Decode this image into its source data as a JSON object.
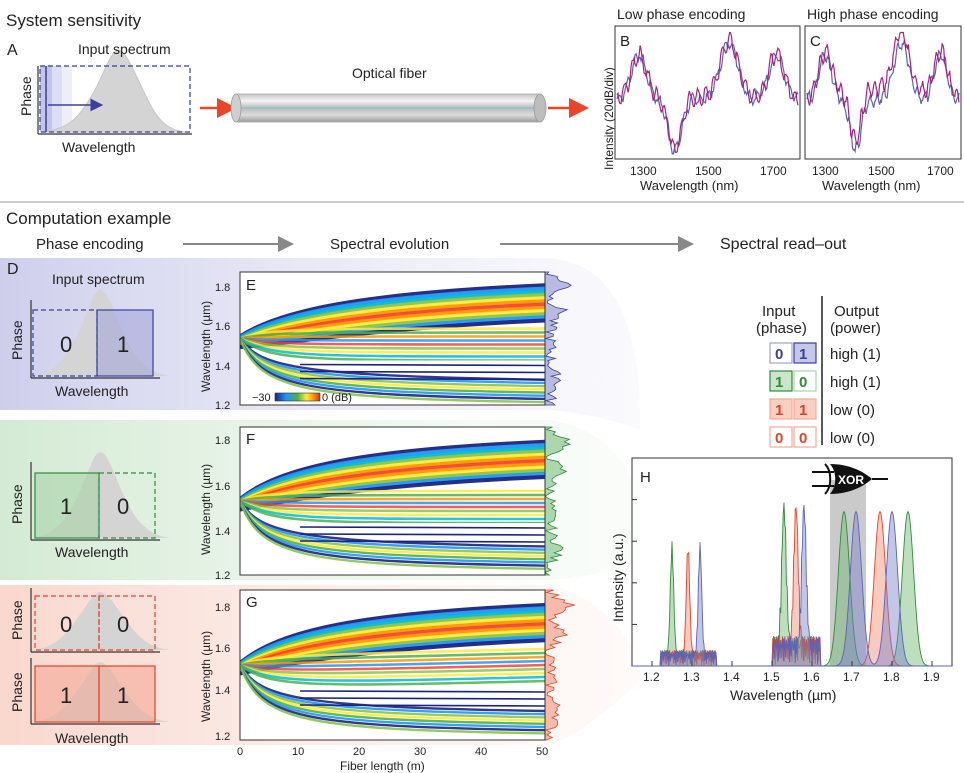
{
  "sensitivity": {
    "title": "System sensitivity",
    "panel_a": {
      "letter": "A",
      "input_label": "Input spectrum",
      "y_label": "Phase",
      "x_label": "Wavelength",
      "fiber_label": "Optical fiber"
    },
    "panel_b": {
      "letter": "B",
      "title": "Low phase encoding"
    },
    "panel_c": {
      "letter": "C",
      "title": "High phase encoding"
    },
    "bc_y_label": "Intensity (20dB/div)",
    "bc_x_label": "Wavelength (nm)",
    "bc_ticks": [
      "1300",
      "1500",
      "1700"
    ],
    "chart_data": {
      "type": "line",
      "x_range_nm": [
        1200,
        1760
      ],
      "series": [
        {
          "color": "#5b63b8"
        },
        {
          "color": "#a6237d"
        }
      ]
    }
  },
  "computation": {
    "title": "Computation example",
    "stage_labels": [
      "Phase encoding",
      "Spectral evolution",
      "Spectral read–out"
    ],
    "panel_d": {
      "letter": "D",
      "input_label": "Input spectrum",
      "y_label": "Phase",
      "x_label": "Wavelength",
      "cases": [
        {
          "left": "0",
          "right": "1",
          "color": "#3b3f9e"
        },
        {
          "left": "1",
          "right": "0",
          "color": "#2e8b3a"
        },
        {
          "left": "0",
          "right": "0",
          "color": "#e04428"
        },
        {
          "left": "1",
          "right": "1",
          "color": "#e04428"
        }
      ]
    },
    "evolution": {
      "letters": [
        "E",
        "F",
        "G"
      ],
      "y_label": "Wavelength (µm)",
      "y_ticks": [
        "1.8",
        "1.6",
        "1.4",
        "1.2"
      ],
      "x_label": "Fiber length (m)",
      "x_ticks": [
        "0",
        "10",
        "20",
        "30",
        "40",
        "50"
      ],
      "colorbar_min": "−30",
      "colorbar_max": "0 (dB)"
    },
    "truth_table": {
      "col1_header": [
        "Input",
        "(phase)"
      ],
      "col2_header": [
        "Output",
        "(power)"
      ],
      "rows": [
        {
          "a": "0",
          "b": "1",
          "output": "high (1)",
          "color": "#3b3f9e"
        },
        {
          "a": "1",
          "b": "0",
          "output": "high (1)",
          "color": "#2e8b3a"
        },
        {
          "a": "1",
          "b": "1",
          "output": "low (0)",
          "color": "#e04428"
        },
        {
          "a": "0",
          "b": "0",
          "output": "low (0)",
          "color": "#e04428"
        }
      ]
    },
    "panel_h": {
      "letter": "H",
      "gate_label": "XOR",
      "y_label": "Intensity (a.u.)",
      "x_label": "Wavelength (µm)",
      "x_ticks": [
        "1.2",
        "1.3",
        "1.4",
        "1.5",
        "1.6",
        "1.7",
        "1.8",
        "1.9"
      ],
      "chart_data": {
        "type": "area",
        "x_range_um": [
          1.15,
          1.95
        ],
        "highlight_band_um": [
          1.645,
          1.735
        ],
        "series": [
          {
            "color": "#2e8b3a",
            "peaks_um": [
              1.25,
              1.53,
              1.68,
              1.84
            ]
          },
          {
            "color": "#e04428",
            "peaks_um": [
              1.29,
              1.56,
              1.77
            ]
          },
          {
            "color": "#5b63b8",
            "peaks_um": [
              1.32,
              1.58,
              1.71,
              1.8
            ]
          }
        ]
      }
    }
  }
}
